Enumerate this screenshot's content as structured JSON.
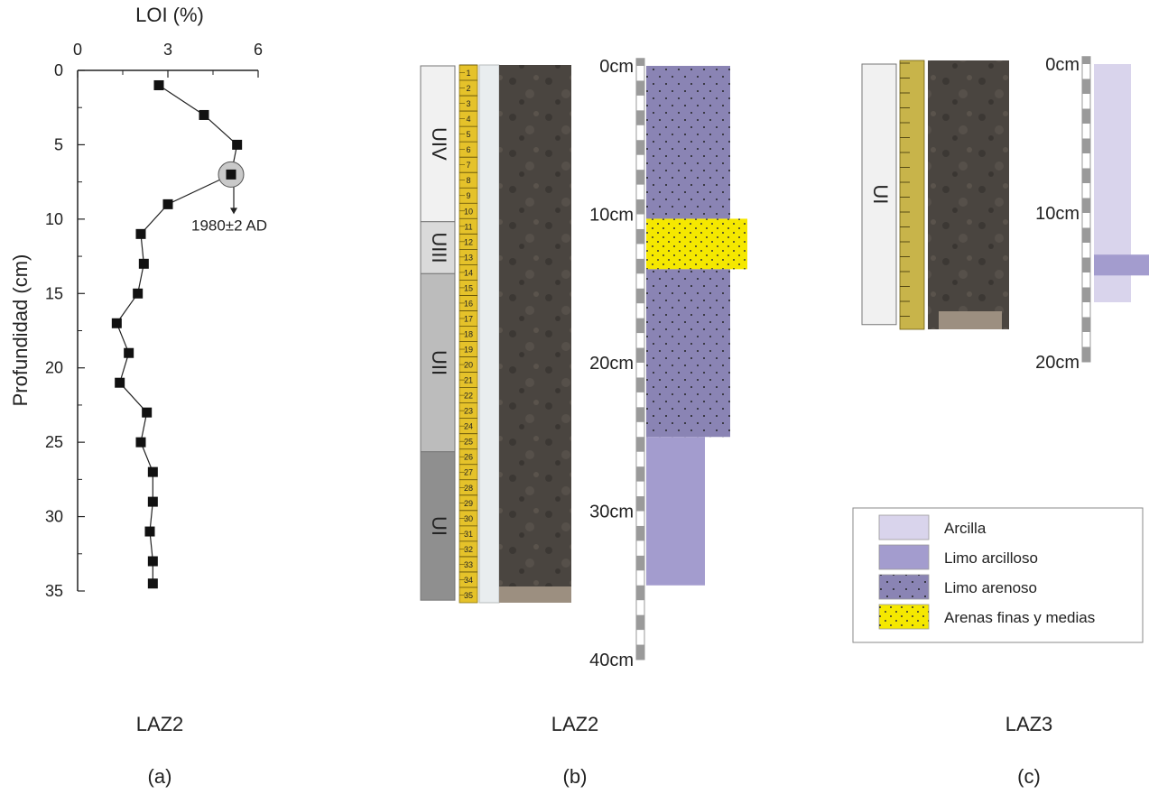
{
  "panel_a": {
    "title": "LAZ2",
    "letter": "(a)",
    "annotation": "1980±2 AD",
    "chart_data": {
      "type": "scatter",
      "xlabel": "LOI (%)",
      "ylabel": "Profundidad (cm)",
      "xlim": [
        0,
        6
      ],
      "ylim": [
        0,
        35
      ],
      "y_inverted": true,
      "x_axis_position": "top",
      "x_ticks": [
        0,
        3,
        6
      ],
      "y_ticks": [
        0,
        5,
        10,
        15,
        20,
        25,
        30,
        35
      ],
      "grid": false,
      "points": [
        {
          "x": 2.7,
          "y": 1
        },
        {
          "x": 4.2,
          "y": 3
        },
        {
          "x": 5.3,
          "y": 5
        },
        {
          "x": 5.1,
          "y": 7
        },
        {
          "x": 3.0,
          "y": 9
        },
        {
          "x": 2.1,
          "y": 11
        },
        {
          "x": 2.2,
          "y": 13
        },
        {
          "x": 2.0,
          "y": 15
        },
        {
          "x": 1.3,
          "y": 17
        },
        {
          "x": 1.7,
          "y": 19
        },
        {
          "x": 1.4,
          "y": 21
        },
        {
          "x": 2.3,
          "y": 23
        },
        {
          "x": 2.1,
          "y": 25
        },
        {
          "x": 2.5,
          "y": 27
        },
        {
          "x": 2.5,
          "y": 29
        },
        {
          "x": 2.4,
          "y": 31
        },
        {
          "x": 2.5,
          "y": 33
        },
        {
          "x": 2.5,
          "y": 34.5
        }
      ],
      "highlight_point_index": 3
    }
  },
  "panel_b": {
    "title": "LAZ2",
    "letter": "(b)",
    "units": [
      {
        "label": "UIV",
        "top": 0,
        "bottom": 10.5,
        "color": "#f1f1f1"
      },
      {
        "label": "UIII",
        "top": 10.5,
        "bottom": 14,
        "color": "#dadada"
      },
      {
        "label": "UII",
        "top": 14,
        "bottom": 26,
        "color": "#bcbcbc"
      },
      {
        "label": "UI",
        "top": 26,
        "bottom": 36,
        "color": "#8f8f8f"
      }
    ],
    "ruler_numbers": [
      "1",
      "2",
      "3",
      "4",
      "5",
      "6",
      "7",
      "8",
      "9",
      "10",
      "11",
      "12",
      "13",
      "14",
      "15",
      "16",
      "17",
      "18",
      "19",
      "20",
      "21",
      "22",
      "23",
      "24",
      "25",
      "26",
      "27",
      "28",
      "29",
      "30",
      "31",
      "32",
      "33",
      "34",
      "35"
    ],
    "depth_labels": [
      "0cm",
      "10cm",
      "20cm",
      "30cm",
      "40cm"
    ],
    "depth_max": 40,
    "lithology": [
      {
        "type": "limo_arenoso",
        "top": 0,
        "bottom": 10.3
      },
      {
        "type": "arenas",
        "top": 10.3,
        "bottom": 13.7
      },
      {
        "type": "limo_arenoso",
        "top": 13.7,
        "bottom": 25
      },
      {
        "type": "limo_arcilloso",
        "top": 25,
        "bottom": 35
      }
    ]
  },
  "panel_c": {
    "title": "LAZ3",
    "letter": "(c)",
    "units": [
      {
        "label": "UI",
        "top": 0,
        "bottom": 17.5,
        "color": "#f1f1f1"
      }
    ],
    "depth_labels": [
      "0cm",
      "10cm",
      "20cm"
    ],
    "depth_max": 20,
    "lithology": [
      {
        "type": "arcilla",
        "top": 0,
        "bottom": 16
      },
      {
        "type": "limo_arcilloso",
        "top": 12.8,
        "bottom": 14.2
      }
    ]
  },
  "legend": {
    "items": [
      {
        "type": "arcilla",
        "label": "Arcilla"
      },
      {
        "type": "limo_arcilloso",
        "label": "Limo arcilloso"
      },
      {
        "type": "limo_arenoso",
        "label": "Limo arenoso"
      },
      {
        "type": "arenas",
        "label": "Arenas finas y medias"
      }
    ]
  },
  "colors": {
    "arcilla": "#d9d4ec",
    "limo_arcilloso": "#a39cce",
    "limo_arenoso": "#8a84b4",
    "arenas": "#f5e800",
    "ruler": "#e5c22a",
    "core": "#4a4540"
  }
}
